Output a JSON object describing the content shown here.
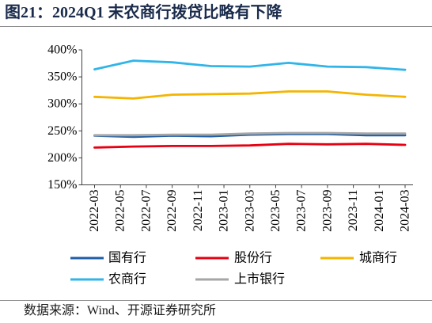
{
  "chart_data": {
    "type": "line",
    "title": "图21：2024Q1 末农商行拨贷比略有下降",
    "source": "数据来源：Wind、开源证券研究所",
    "x": [
      "2022-03",
      "2022-06",
      "2022-09",
      "2022-12",
      "2023-03",
      "2023-06",
      "2023-09",
      "2023-12",
      "2024-03"
    ],
    "x_axis": {
      "tick_labels": [
        "2022-03",
        "2022-05",
        "2022-07",
        "2022-09",
        "2022-11",
        "2023-01",
        "2023-03",
        "2023-05",
        "2023-07",
        "2023-09",
        "2023-11",
        "2024-01",
        "2024-03"
      ]
    },
    "y_axis": {
      "range": [
        150,
        400
      ],
      "tick_labels": [
        "150%",
        "200%",
        "250%",
        "300%",
        "350%",
        "400%"
      ]
    },
    "series": [
      {
        "name": "国有行",
        "color": "#1f5fa6",
        "values": [
          241,
          239,
          241,
          240,
          243,
          244,
          244,
          242,
          242
        ]
      },
      {
        "name": "股份行",
        "color": "#e60012",
        "values": [
          219,
          221,
          222,
          222,
          223,
          226,
          225,
          226,
          224
        ]
      },
      {
        "name": "城商行",
        "color": "#f4b400",
        "values": [
          313,
          310,
          317,
          318,
          319,
          323,
          323,
          317,
          313
        ]
      },
      {
        "name": "农商行",
        "color": "#31b4e8",
        "values": [
          364,
          380,
          377,
          370,
          369,
          376,
          369,
          368,
          363
        ]
      },
      {
        "name": "上市银行",
        "color": "#a6a6a6",
        "values": [
          242,
          242,
          243,
          243,
          245,
          246,
          246,
          245,
          245
        ]
      }
    ],
    "grid": false,
    "legend": "bottom"
  }
}
